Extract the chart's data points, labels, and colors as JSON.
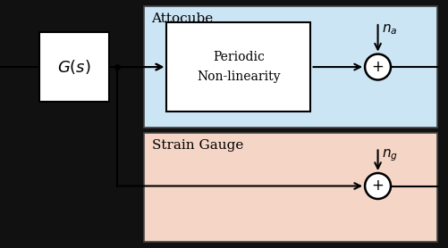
{
  "bg_color": "#111111",
  "attocube_bg": "#cce5f5",
  "straingauge_bg": "#f5d5c5",
  "box_edge": "#555555",
  "gs_box_color": "#ffffff",
  "attocube_label": "Attocube",
  "straingauge_label": "Strain Gauge",
  "gs_label": "$G(s)$",
  "nonlin_label1": "Periodic",
  "nonlin_label2": "Non-linearity",
  "na_label": "$n_a$",
  "ng_label": "$n_g$",
  "plus_symbol": "$+$",
  "figsize": [
    5.02,
    2.78
  ],
  "dpi": 100,
  "arrow_color": "#111111",
  "line_color": "#111111"
}
